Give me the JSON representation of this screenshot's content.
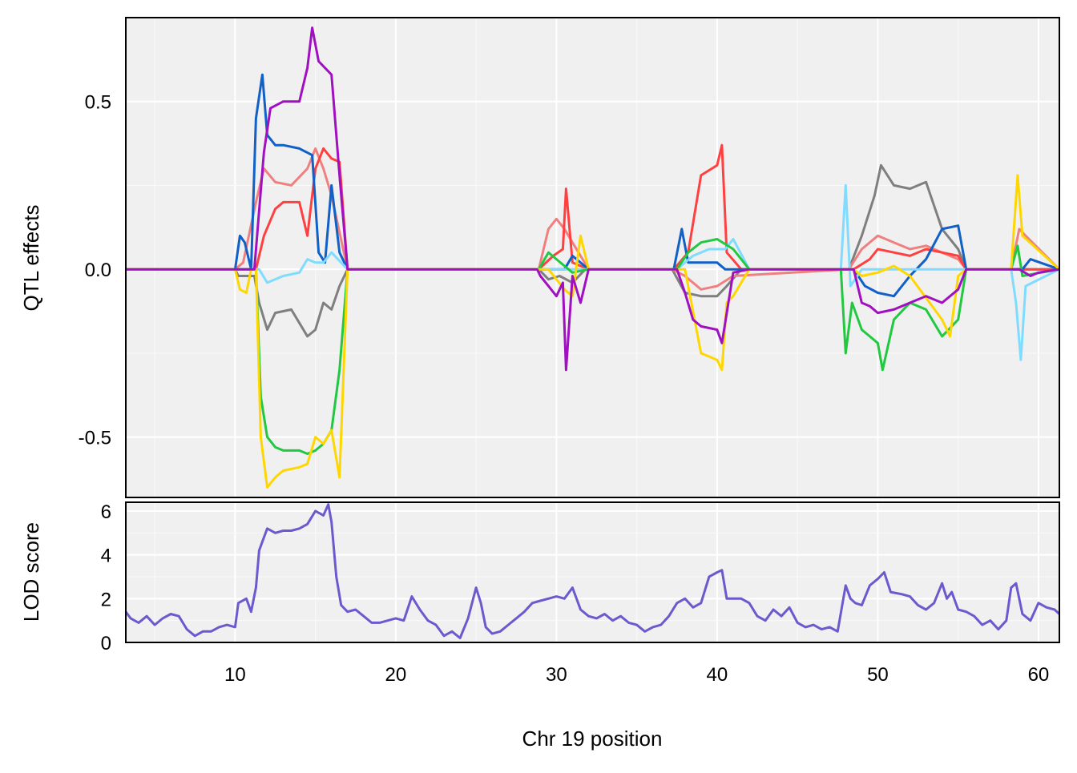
{
  "chart_data": [
    {
      "type": "line",
      "panel": "top",
      "ylabel": "QTL effects",
      "xlabel": "",
      "xlim": [
        3.2,
        61.3
      ],
      "ylim": [
        -0.68,
        0.75
      ],
      "grid": true,
      "yticks": [
        -0.5,
        0.0,
        0.5
      ],
      "ytick_labels": [
        "-0.5",
        "0.0",
        "0.5"
      ],
      "series": [
        {
          "color": "#7f7f7f",
          "x": [
            3.2,
            10.0,
            10.2,
            11.2,
            11.5,
            12.0,
            12.5,
            13.5,
            14.0,
            14.5,
            15.0,
            15.5,
            16.0,
            16.5,
            17.0,
            28.9,
            29.5,
            30.2,
            31.0,
            31.8,
            37.2,
            38.0,
            39.0,
            40.0,
            40.6,
            41.5,
            48.2,
            49.0,
            49.8,
            50.2,
            51.0,
            52.0,
            53.0,
            54.0,
            55.0,
            55.5,
            61.3
          ],
          "y": [
            0,
            0,
            -0.02,
            -0.02,
            -0.1,
            -0.18,
            -0.13,
            -0.12,
            -0.16,
            -0.2,
            -0.18,
            -0.1,
            -0.12,
            -0.05,
            0,
            0,
            -0.03,
            -0.02,
            -0.04,
            0,
            0,
            -0.07,
            -0.08,
            -0.08,
            -0.05,
            0,
            0,
            0.1,
            0.22,
            0.31,
            0.25,
            0.24,
            0.26,
            0.12,
            0.06,
            0,
            0
          ]
        },
        {
          "color": "#f08080",
          "x": [
            3.2,
            10.0,
            10.5,
            11.3,
            11.8,
            12.5,
            13.5,
            14.5,
            15.0,
            15.5,
            16.0,
            17.0,
            28.9,
            29.5,
            30.0,
            30.5,
            31.0,
            31.5,
            32.0,
            37.2,
            38.0,
            39.0,
            40.0,
            41.0,
            48.2,
            49.0,
            50.0,
            51.0,
            52.0,
            53.0,
            54.0,
            55.0,
            55.5,
            58.3,
            58.8,
            59.2,
            61.3
          ],
          "y": [
            0,
            0,
            0.02,
            0.2,
            0.3,
            0.26,
            0.25,
            0.3,
            0.36,
            0.3,
            0.22,
            0,
            0,
            0.12,
            0.15,
            0.12,
            0.08,
            0.04,
            0,
            0,
            -0.02,
            -0.06,
            -0.05,
            -0.02,
            0,
            0.06,
            0.1,
            0.08,
            0.06,
            0.07,
            0.05,
            0.03,
            0,
            0,
            0.12,
            0.1,
            0
          ]
        },
        {
          "color": "#ff4040",
          "x": [
            3.2,
            11.3,
            11.8,
            12.5,
            13.0,
            14.0,
            14.5,
            15.0,
            15.5,
            16.0,
            16.5,
            17.0,
            28.9,
            29.8,
            30.4,
            30.6,
            31.0,
            31.5,
            32.0,
            37.3,
            38.2,
            39.0,
            40.0,
            40.3,
            40.6,
            41.5,
            48.5,
            49.5,
            50.0,
            51.0,
            52.0,
            53.0,
            54.0,
            55.0,
            55.5,
            61.3
          ],
          "y": [
            0,
            0,
            0.1,
            0.18,
            0.2,
            0.2,
            0.1,
            0.3,
            0.36,
            0.33,
            0.32,
            0,
            0,
            0.04,
            0.06,
            0.24,
            0.02,
            0.01,
            0,
            0,
            0.05,
            0.28,
            0.31,
            0.37,
            0.05,
            0,
            0,
            0.03,
            0.06,
            0.05,
            0.04,
            0.06,
            0.05,
            0.04,
            0,
            0
          ]
        },
        {
          "color": "#1060c8",
          "x": [
            3.2,
            10.0,
            10.3,
            10.6,
            11.0,
            11.3,
            11.7,
            12.0,
            12.5,
            13.0,
            14.0,
            14.8,
            15.2,
            15.6,
            16.0,
            16.5,
            17.0,
            30.5,
            31.0,
            32.0,
            37.3,
            37.8,
            38.2,
            40.0,
            40.5,
            48.5,
            49.2,
            50.0,
            51.0,
            52.0,
            53.0,
            54.0,
            55.0,
            55.5,
            59.0,
            59.5,
            61.3
          ],
          "y": [
            0,
            0,
            0.1,
            0.08,
            0,
            0.45,
            0.58,
            0.4,
            0.37,
            0.37,
            0.36,
            0.34,
            0.05,
            0.02,
            0.25,
            0.05,
            0,
            0,
            0.04,
            0,
            0,
            0.12,
            0.02,
            0.02,
            0,
            0,
            -0.05,
            -0.07,
            -0.08,
            -0.02,
            0.03,
            0.12,
            0.13,
            0,
            0,
            0.03,
            0
          ]
        },
        {
          "color": "#7fdcff",
          "x": [
            3.2,
            11.5,
            12.0,
            13.0,
            14.0,
            14.5,
            15.0,
            15.5,
            16.0,
            17.0,
            37.5,
            38.5,
            39.5,
            40.5,
            41.0,
            42.0,
            47.7,
            48.0,
            48.3,
            49.0,
            50.0,
            55.5,
            58.3,
            58.6,
            58.9,
            59.2,
            61.3
          ],
          "y": [
            0,
            0,
            -0.04,
            -0.02,
            -0.01,
            0.03,
            0.02,
            0.02,
            0.05,
            0,
            0,
            0.04,
            0.06,
            0.06,
            0.09,
            0,
            0,
            0.25,
            -0.05,
            0,
            0,
            0,
            0,
            -0.1,
            -0.27,
            -0.05,
            0
          ]
        },
        {
          "color": "#22c840",
          "x": [
            3.2,
            11.3,
            11.6,
            12.0,
            12.5,
            13.0,
            13.5,
            14.0,
            14.5,
            15.0,
            15.5,
            16.0,
            16.5,
            17.0,
            28.9,
            29.5,
            30.0,
            30.5,
            31.0,
            32.0,
            37.5,
            38.2,
            39.0,
            40.0,
            41.0,
            42.0,
            47.7,
            48.0,
            48.4,
            49.0,
            49.5,
            50.0,
            50.3,
            51.0,
            52.0,
            53.0,
            54.0,
            55.0,
            55.5,
            58.3,
            58.7,
            59.0,
            61.3
          ],
          "y": [
            0,
            0,
            -0.38,
            -0.5,
            -0.53,
            -0.54,
            -0.54,
            -0.54,
            -0.55,
            -0.54,
            -0.52,
            -0.48,
            -0.3,
            0,
            0,
            0.05,
            0.03,
            0.01,
            -0.01,
            0,
            0,
            0.05,
            0.08,
            0.09,
            0.06,
            0,
            0,
            -0.25,
            -0.1,
            -0.18,
            -0.2,
            -0.22,
            -0.3,
            -0.15,
            -0.1,
            -0.12,
            -0.2,
            -0.15,
            0,
            0,
            0.07,
            -0.02,
            0
          ]
        },
        {
          "color": "#ffd700",
          "x": [
            3.2,
            10.0,
            10.3,
            10.7,
            11.0,
            11.3,
            11.6,
            12.0,
            12.5,
            13.0,
            14.0,
            14.5,
            15.0,
            15.5,
            16.0,
            16.5,
            17.0,
            29.5,
            30.5,
            31.0,
            31.5,
            32.0,
            38.0,
            39.0,
            40.0,
            40.3,
            40.6,
            41.0,
            42.0,
            48.5,
            49.0,
            50.0,
            51.0,
            52.0,
            54.0,
            54.5,
            55.0,
            55.5,
            58.3,
            58.7,
            59.0,
            61.3
          ],
          "y": [
            0,
            0,
            -0.06,
            -0.07,
            0,
            0,
            -0.5,
            -0.65,
            -0.62,
            -0.6,
            -0.59,
            -0.58,
            -0.5,
            -0.52,
            -0.48,
            -0.62,
            0,
            0,
            -0.06,
            -0.08,
            0.1,
            0,
            0,
            -0.25,
            -0.27,
            -0.3,
            -0.1,
            -0.08,
            0,
            0,
            -0.02,
            -0.01,
            0.01,
            -0.02,
            -0.15,
            -0.2,
            -0.02,
            0,
            0,
            0.28,
            0.1,
            0
          ]
        },
        {
          "color": "#a010c0",
          "x": [
            3.2,
            11.2,
            11.8,
            12.2,
            13.0,
            14.0,
            14.5,
            14.8,
            15.2,
            16.0,
            16.5,
            17.0,
            28.8,
            29.0,
            29.5,
            30.0,
            30.4,
            30.6,
            31.0,
            31.5,
            32.0,
            37.5,
            38.0,
            38.5,
            39.0,
            40.0,
            40.3,
            41.0,
            42.0,
            48.5,
            49.0,
            49.5,
            50.0,
            51.0,
            52.0,
            53.0,
            54.0,
            55.0,
            55.5,
            58.8,
            59.5,
            60.0,
            61.3
          ],
          "y": [
            0,
            0,
            0.35,
            0.48,
            0.5,
            0.5,
            0.6,
            0.72,
            0.62,
            0.58,
            0.28,
            0,
            0,
            -0.02,
            -0.05,
            -0.08,
            -0.04,
            -0.3,
            -0.02,
            -0.1,
            0,
            0,
            -0.07,
            -0.15,
            -0.17,
            -0.18,
            -0.22,
            -0.01,
            0,
            0,
            -0.1,
            -0.11,
            -0.13,
            -0.12,
            -0.1,
            -0.08,
            -0.1,
            -0.06,
            0,
            0,
            -0.02,
            -0.01,
            0
          ]
        }
      ]
    },
    {
      "type": "line",
      "panel": "bottom",
      "ylabel": "LOD score",
      "xlabel": "Chr 19 position",
      "xlim": [
        3.2,
        61.3
      ],
      "ylim": [
        0,
        6.4
      ],
      "grid": true,
      "yticks": [
        0,
        2,
        4,
        6
      ],
      "ytick_labels": [
        "0",
        "2",
        "4",
        "6"
      ],
      "xticks": [
        10,
        20,
        30,
        40,
        50,
        60
      ],
      "xtick_labels": [
        "10",
        "20",
        "30",
        "40",
        "50",
        "60"
      ],
      "series": [
        {
          "color": "#6a5acd",
          "x": [
            3.2,
            3.5,
            4.0,
            4.5,
            5.0,
            5.5,
            6.0,
            6.5,
            7.0,
            7.5,
            8.0,
            8.5,
            9.0,
            9.5,
            10.0,
            10.2,
            10.7,
            11.0,
            11.3,
            11.5,
            11.8,
            12.0,
            12.5,
            13.0,
            13.5,
            14.0,
            14.5,
            15.0,
            15.5,
            15.8,
            16.0,
            16.3,
            16.6,
            17.0,
            17.5,
            18.0,
            18.5,
            19.0,
            19.5,
            20.0,
            20.5,
            21.0,
            21.5,
            22.0,
            22.5,
            23.0,
            23.5,
            24.0,
            24.5,
            25.0,
            25.3,
            25.6,
            26.0,
            26.5,
            27.0,
            27.5,
            28.0,
            28.5,
            29.0,
            29.5,
            30.0,
            30.5,
            31.0,
            31.5,
            32.0,
            32.5,
            33.0,
            33.5,
            34.0,
            34.5,
            35.0,
            35.5,
            36.0,
            36.5,
            37.0,
            37.5,
            38.0,
            38.5,
            39.0,
            39.5,
            40.0,
            40.3,
            40.6,
            41.0,
            41.5,
            42.0,
            42.5,
            43.0,
            43.5,
            44.0,
            44.5,
            45.0,
            45.5,
            46.0,
            46.5,
            47.0,
            47.5,
            48.0,
            48.3,
            48.6,
            49.0,
            49.5,
            50.0,
            50.4,
            50.8,
            51.5,
            52.0,
            52.5,
            53.0,
            53.5,
            54.0,
            54.3,
            54.6,
            55.0,
            55.5,
            56.0,
            56.5,
            57.0,
            57.5,
            58.0,
            58.3,
            58.6,
            59.0,
            59.5,
            60.0,
            60.5,
            61.0,
            61.3
          ],
          "y": [
            1.4,
            1.1,
            0.9,
            1.2,
            0.8,
            1.1,
            1.3,
            1.2,
            0.6,
            0.3,
            0.5,
            0.5,
            0.7,
            0.8,
            0.7,
            1.8,
            2.0,
            1.4,
            2.5,
            4.2,
            4.8,
            5.2,
            5.0,
            5.1,
            5.1,
            5.2,
            5.4,
            6.0,
            5.8,
            6.3,
            5.5,
            3.0,
            1.7,
            1.4,
            1.5,
            1.2,
            0.9,
            0.9,
            1.0,
            1.1,
            1.0,
            2.1,
            1.5,
            1.0,
            0.8,
            0.3,
            0.5,
            0.2,
            1.1,
            2.5,
            1.8,
            0.7,
            0.4,
            0.5,
            0.8,
            1.1,
            1.4,
            1.8,
            1.9,
            2.0,
            2.1,
            2.0,
            2.5,
            1.5,
            1.2,
            1.1,
            1.3,
            1.0,
            1.2,
            0.9,
            0.8,
            0.5,
            0.7,
            0.8,
            1.2,
            1.8,
            2.0,
            1.6,
            1.8,
            3.0,
            3.2,
            3.3,
            2.0,
            2.0,
            2.0,
            1.8,
            1.2,
            1.0,
            1.5,
            1.2,
            1.6,
            0.9,
            0.7,
            0.8,
            0.6,
            0.7,
            0.5,
            2.6,
            2.0,
            1.8,
            1.7,
            2.6,
            2.9,
            3.2,
            2.3,
            2.2,
            2.1,
            1.7,
            1.5,
            1.8,
            2.7,
            2.0,
            2.3,
            1.5,
            1.4,
            1.2,
            0.8,
            1.0,
            0.6,
            1.0,
            2.5,
            2.7,
            1.3,
            1.0,
            1.8,
            1.6,
            1.5,
            1.3
          ]
        }
      ]
    }
  ]
}
